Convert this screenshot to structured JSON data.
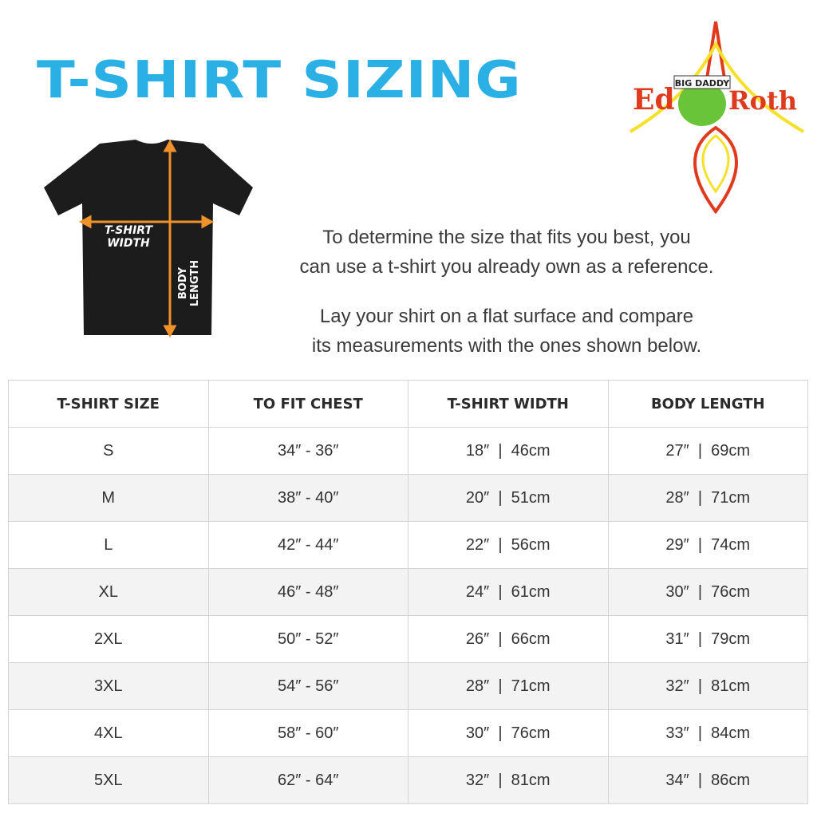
{
  "title": "T-SHIRT SIZING",
  "logo": {
    "text": "Ed BIG DADDY Roth"
  },
  "diagram": {
    "width_label_1": "T-SHIRT",
    "width_label_2": "WIDTH",
    "length_label_1": "BODY",
    "length_label_2": "LENGTH"
  },
  "intro": [
    "To determine the size that fits you best, you",
    "can use a t-shirt you already own as a reference."
  ],
  "instructions": [
    "Lay your shirt on a flat surface and compare",
    "its measurements with the ones shown below."
  ],
  "table": {
    "headers": [
      "T-SHIRT SIZE",
      "TO FIT CHEST",
      "T-SHIRT WIDTH",
      "BODY LENGTH"
    ],
    "rows": [
      [
        "S",
        "34″ - 36″",
        "18″  |  46cm",
        "27″  |  69cm"
      ],
      [
        "M",
        "38″ - 40″",
        "20″  |  51cm",
        "28″  |  71cm"
      ],
      [
        "L",
        "42″ - 44″",
        "22″  |  56cm",
        "29″  |  74cm"
      ],
      [
        "XL",
        "46″ - 48″",
        "24″  |  61cm",
        "30″  |  76cm"
      ],
      [
        "2XL",
        "50″ - 52″",
        "26″  |  66cm",
        "31″  |  79cm"
      ],
      [
        "3XL",
        "54″ - 56″",
        "28″  |  71cm",
        "32″  |  81cm"
      ],
      [
        "4XL",
        "58″ - 60″",
        "30″  |  76cm",
        "33″  |  84cm"
      ],
      [
        "5XL",
        "62″ - 64″",
        "32″  |  81cm",
        "34″  |  86cm"
      ]
    ]
  },
  "colors": {
    "title": "#2ab0e4",
    "arrow": "#f0922b",
    "shirt": "#1c1c1c"
  }
}
